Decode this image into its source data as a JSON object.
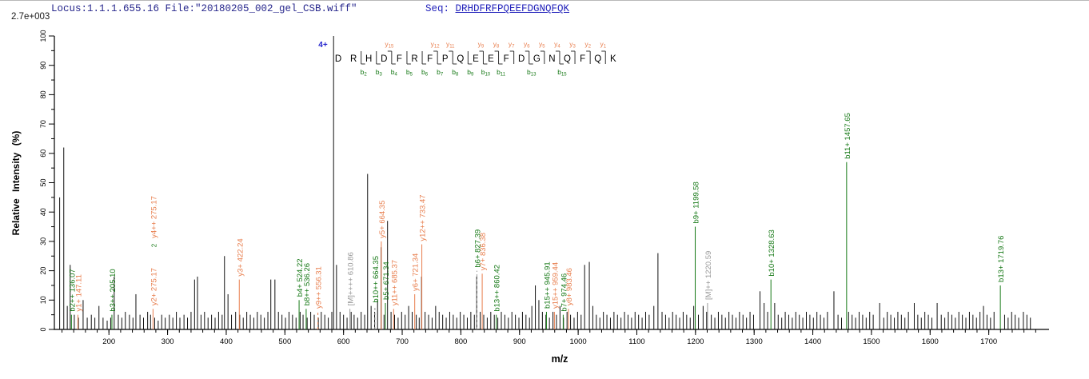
{
  "header": {
    "locus_text": "Locus:1.1.1.655.16 File:\"20180205_002_gel_CSB.wiff\"",
    "seq_label": "Seq: ",
    "seq_value": "DRHDFRFPQEEFDGNQFQK",
    "intensity_scale": "2.7e+003"
  },
  "colors": {
    "b_ion": "#157815",
    "y_ion": "#E87E4D",
    "precursor": "#999999",
    "peak": "#111111",
    "axis": "#000000",
    "charge": "#2222CC",
    "dashed_stem": "#9a9a9a"
  },
  "sequence_map": {
    "charge": "4+",
    "residues": [
      "D",
      "R",
      "H",
      "D",
      "F",
      "R",
      "F",
      "P",
      "Q",
      "E",
      "E",
      "F",
      "D",
      "G",
      "N",
      "Q",
      "F",
      "Q",
      "K"
    ],
    "y_ions": [
      {
        "site": 4,
        "label": "y15"
      },
      {
        "site": 7,
        "label": "y12"
      },
      {
        "site": 8,
        "label": "y11"
      },
      {
        "site": 10,
        "label": "y9"
      },
      {
        "site": 11,
        "label": "y8"
      },
      {
        "site": 12,
        "label": "y7"
      },
      {
        "site": 13,
        "label": "y6"
      },
      {
        "site": 14,
        "label": "y5"
      },
      {
        "site": 15,
        "label": "y4"
      },
      {
        "site": 16,
        "label": "y3"
      },
      {
        "site": 17,
        "label": "y2"
      },
      {
        "site": 18,
        "label": "y1"
      }
    ],
    "b_ions": [
      {
        "site": 2,
        "label": "b2"
      },
      {
        "site": 3,
        "label": "b3"
      },
      {
        "site": 4,
        "label": "b4"
      },
      {
        "site": 5,
        "label": "b5"
      },
      {
        "site": 6,
        "label": "b6"
      },
      {
        "site": 7,
        "label": "b7"
      },
      {
        "site": 8,
        "label": "b8"
      },
      {
        "site": 9,
        "label": "b9"
      },
      {
        "site": 10,
        "label": "b10"
      },
      {
        "site": 11,
        "label": "b11"
      },
      {
        "site": 13,
        "label": "b13"
      },
      {
        "site": 15,
        "label": "b15"
      }
    ]
  },
  "chart_data": {
    "type": "bar",
    "subtype": "ms2-centroid-spectrum",
    "title": "",
    "xlabel": "m/z",
    "ylabel": "Relative Intensity (%)",
    "xlim": [
      107,
      1800
    ],
    "ylim": [
      0,
      100
    ],
    "x_ticks": [
      200,
      300,
      400,
      500,
      600,
      700,
      800,
      900,
      1000,
      1100,
      1200,
      1300,
      1400,
      1500,
      1600,
      1700
    ],
    "x_minor_step": 20,
    "y_ticks": [
      0,
      10,
      20,
      30,
      40,
      50,
      60,
      70,
      80,
      90,
      100
    ],
    "y_minor_step": 5,
    "intensity_scale": "2.7e+003",
    "precursor_charge": "4+",
    "peptide": "DRHDFRFPQEEFDGNQFQK",
    "labeled_ions": [
      {
        "text": "b2++ 136.07",
        "mz": 136.07,
        "type": "b",
        "stem": 5
      },
      {
        "text": "y1+ 147.11",
        "mz": 147.11,
        "type": "y",
        "stem": 5
      },
      {
        "text": "b3++ 205.10",
        "mz": 205.1,
        "type": "b",
        "stem": 5
      },
      {
        "text": "y2+ 275.17",
        "mz": 275.17,
        "type": "y",
        "stem": 7
      },
      {
        "text": "y4++ 275.17",
        "mz": 275.17,
        "type": "y",
        "stem": 0,
        "textStart": 30,
        "mark": "2"
      },
      {
        "text": "y3+ 422.24",
        "mz": 422.24,
        "type": "y",
        "stem": 17
      },
      {
        "text": "b4+ 524.22",
        "mz": 524.22,
        "type": "b",
        "stem": 10
      },
      {
        "text": "b8++ 536.26",
        "mz": 536.26,
        "type": "b",
        "stem": 7
      },
      {
        "text": "y9++ 556.31",
        "mz": 556.31,
        "type": "y",
        "stem": 6,
        "dashed": true
      },
      {
        "text": "[M]++++ 610.86",
        "mz": 610.86,
        "type": "M",
        "stem": 7
      },
      {
        "text": "b10++ 664.35",
        "mz": 664.35,
        "type": "b",
        "stem": 8,
        "dashed": true,
        "dx": -8
      },
      {
        "text": "y5+ 664.35",
        "mz": 664.35,
        "type": "y",
        "stem": 30
      },
      {
        "text": "b5+ 671.34",
        "mz": 671.34,
        "type": "b",
        "stem": 9
      },
      {
        "text": "y11++ 685.37",
        "mz": 685.37,
        "type": "y",
        "stem": 7
      },
      {
        "text": "y6+ 721.34",
        "mz": 721.34,
        "type": "y",
        "stem": 12
      },
      {
        "text": "y12++ 733.47",
        "mz": 733.47,
        "type": "y",
        "stem": 29
      },
      {
        "text": "b6+ 827.39",
        "mz": 827.39,
        "type": "b",
        "stem": 20,
        "dashed": true
      },
      {
        "text": "y7+ 836.38",
        "mz": 836.38,
        "type": "y",
        "stem": 19
      },
      {
        "text": "b13++ 860.42",
        "mz": 860.42,
        "type": "b",
        "stem": 5
      },
      {
        "text": "b15++ 945.91",
        "mz": 945.91,
        "type": "b",
        "stem": 6
      },
      {
        "text": "y15++ 959.44",
        "mz": 959.44,
        "type": "y",
        "stem": 6
      },
      {
        "text": "b7+ 974.46",
        "mz": 974.46,
        "type": "b",
        "stem": 5
      },
      {
        "text": "y8+ 983.46",
        "mz": 983.46,
        "type": "y",
        "stem": 7
      },
      {
        "text": "b9+ 1199.58",
        "mz": 1199.58,
        "type": "b",
        "stem": 35
      },
      {
        "text": "[M]++ 1220.59",
        "mz": 1220.59,
        "type": "M",
        "stem": 9
      },
      {
        "text": "b10+ 1328.63",
        "mz": 1328.63,
        "type": "b",
        "stem": 17
      },
      {
        "text": "b11+ 1457.65",
        "mz": 1457.65,
        "type": "b",
        "stem": 57
      },
      {
        "text": "b13+ 1719.76",
        "mz": 1719.76,
        "type": "b",
        "stem": 15
      }
    ],
    "peaks": [
      [
        116,
        45
      ],
      [
        123,
        62
      ],
      [
        129,
        8
      ],
      [
        134,
        22
      ],
      [
        141,
        5
      ],
      [
        148,
        4
      ],
      [
        156,
        10
      ],
      [
        163,
        4
      ],
      [
        170,
        5
      ],
      [
        176,
        4
      ],
      [
        183,
        8
      ],
      [
        190,
        4
      ],
      [
        197,
        3
      ],
      [
        203,
        4
      ],
      [
        209,
        18
      ],
      [
        216,
        5
      ],
      [
        222,
        4
      ],
      [
        228,
        6
      ],
      [
        235,
        5
      ],
      [
        241,
        4
      ],
      [
        246,
        12
      ],
      [
        253,
        5
      ],
      [
        259,
        4
      ],
      [
        266,
        6
      ],
      [
        271,
        5
      ],
      [
        278,
        4
      ],
      [
        284,
        3
      ],
      [
        290,
        5
      ],
      [
        296,
        4
      ],
      [
        303,
        5
      ],
      [
        309,
        4
      ],
      [
        315,
        6
      ],
      [
        321,
        4
      ],
      [
        328,
        5
      ],
      [
        334,
        4
      ],
      [
        340,
        6
      ],
      [
        346,
        17
      ],
      [
        351,
        18
      ],
      [
        357,
        5
      ],
      [
        363,
        6
      ],
      [
        369,
        4
      ],
      [
        375,
        5
      ],
      [
        381,
        4
      ],
      [
        387,
        6
      ],
      [
        393,
        5
      ],
      [
        397,
        25
      ],
      [
        403,
        12
      ],
      [
        409,
        5
      ],
      [
        416,
        6
      ],
      [
        423,
        5
      ],
      [
        429,
        4
      ],
      [
        435,
        6
      ],
      [
        441,
        5
      ],
      [
        447,
        4
      ],
      [
        453,
        6
      ],
      [
        459,
        5
      ],
      [
        465,
        4
      ],
      [
        471,
        6
      ],
      [
        476,
        17
      ],
      [
        483,
        17
      ],
      [
        489,
        6
      ],
      [
        495,
        5
      ],
      [
        501,
        4
      ],
      [
        507,
        6
      ],
      [
        513,
        5
      ],
      [
        519,
        4
      ],
      [
        526,
        6
      ],
      [
        531,
        5
      ],
      [
        538,
        4
      ],
      [
        544,
        6
      ],
      [
        550,
        5
      ],
      [
        557,
        4
      ],
      [
        562,
        6
      ],
      [
        568,
        5
      ],
      [
        574,
        4
      ],
      [
        580,
        6
      ],
      [
        583,
        100
      ],
      [
        588,
        22
      ],
      [
        594,
        6
      ],
      [
        600,
        5
      ],
      [
        606,
        4
      ],
      [
        613,
        6
      ],
      [
        618,
        5
      ],
      [
        624,
        4
      ],
      [
        630,
        6
      ],
      [
        636,
        5
      ],
      [
        641,
        53
      ],
      [
        647,
        8
      ],
      [
        653,
        6
      ],
      [
        658,
        10
      ],
      [
        664,
        28
      ],
      [
        669,
        5
      ],
      [
        675,
        37
      ],
      [
        681,
        6
      ],
      [
        687,
        5
      ],
      [
        693,
        4
      ],
      [
        699,
        6
      ],
      [
        705,
        5
      ],
      [
        711,
        8
      ],
      [
        717,
        6
      ],
      [
        724,
        5
      ],
      [
        729,
        4
      ],
      [
        733,
        18
      ],
      [
        739,
        6
      ],
      [
        745,
        5
      ],
      [
        751,
        4
      ],
      [
        757,
        8
      ],
      [
        763,
        6
      ],
      [
        769,
        5
      ],
      [
        775,
        4
      ],
      [
        781,
        6
      ],
      [
        787,
        5
      ],
      [
        793,
        4
      ],
      [
        799,
        6
      ],
      [
        805,
        5
      ],
      [
        811,
        4
      ],
      [
        817,
        6
      ],
      [
        823,
        5
      ],
      [
        827,
        18
      ],
      [
        833,
        6
      ],
      [
        839,
        5
      ],
      [
        845,
        4
      ],
      [
        851,
        6
      ],
      [
        857,
        5
      ],
      [
        863,
        4
      ],
      [
        869,
        6
      ],
      [
        875,
        5
      ],
      [
        881,
        4
      ],
      [
        887,
        6
      ],
      [
        893,
        5
      ],
      [
        899,
        4
      ],
      [
        905,
        6
      ],
      [
        911,
        5
      ],
      [
        917,
        4
      ],
      [
        921,
        8
      ],
      [
        927,
        15
      ],
      [
        933,
        10
      ],
      [
        939,
        6
      ],
      [
        945,
        5
      ],
      [
        951,
        4
      ],
      [
        957,
        6
      ],
      [
        963,
        5
      ],
      [
        969,
        8
      ],
      [
        975,
        4
      ],
      [
        981,
        6
      ],
      [
        987,
        5
      ],
      [
        993,
        4
      ],
      [
        999,
        6
      ],
      [
        1005,
        5
      ],
      [
        1011,
        22
      ],
      [
        1019,
        23
      ],
      [
        1025,
        8
      ],
      [
        1031,
        5
      ],
      [
        1037,
        4
      ],
      [
        1043,
        6
      ],
      [
        1049,
        5
      ],
      [
        1055,
        4
      ],
      [
        1061,
        6
      ],
      [
        1067,
        5
      ],
      [
        1073,
        4
      ],
      [
        1079,
        6
      ],
      [
        1085,
        5
      ],
      [
        1091,
        4
      ],
      [
        1097,
        6
      ],
      [
        1103,
        5
      ],
      [
        1109,
        4
      ],
      [
        1115,
        6
      ],
      [
        1121,
        5
      ],
      [
        1129,
        8
      ],
      [
        1136,
        26
      ],
      [
        1143,
        6
      ],
      [
        1149,
        5
      ],
      [
        1155,
        4
      ],
      [
        1161,
        6
      ],
      [
        1167,
        5
      ],
      [
        1173,
        4
      ],
      [
        1179,
        6
      ],
      [
        1185,
        5
      ],
      [
        1191,
        4
      ],
      [
        1197,
        8
      ],
      [
        1205,
        5
      ],
      [
        1213,
        8
      ],
      [
        1219,
        6
      ],
      [
        1227,
        5
      ],
      [
        1233,
        4
      ],
      [
        1239,
        6
      ],
      [
        1245,
        5
      ],
      [
        1251,
        4
      ],
      [
        1257,
        6
      ],
      [
        1263,
        5
      ],
      [
        1269,
        4
      ],
      [
        1275,
        6
      ],
      [
        1281,
        5
      ],
      [
        1287,
        4
      ],
      [
        1293,
        6
      ],
      [
        1299,
        5
      ],
      [
        1310,
        13
      ],
      [
        1317,
        9
      ],
      [
        1323,
        6
      ],
      [
        1335,
        9
      ],
      [
        1341,
        5
      ],
      [
        1347,
        4
      ],
      [
        1353,
        6
      ],
      [
        1359,
        5
      ],
      [
        1365,
        4
      ],
      [
        1371,
        6
      ],
      [
        1377,
        5
      ],
      [
        1383,
        4
      ],
      [
        1389,
        6
      ],
      [
        1395,
        5
      ],
      [
        1401,
        4
      ],
      [
        1407,
        6
      ],
      [
        1413,
        5
      ],
      [
        1419,
        4
      ],
      [
        1425,
        6
      ],
      [
        1436,
        13
      ],
      [
        1443,
        5
      ],
      [
        1449,
        4
      ],
      [
        1461,
        6
      ],
      [
        1467,
        5
      ],
      [
        1473,
        4
      ],
      [
        1479,
        6
      ],
      [
        1485,
        5
      ],
      [
        1491,
        4
      ],
      [
        1497,
        6
      ],
      [
        1503,
        5
      ],
      [
        1514,
        9
      ],
      [
        1521,
        4
      ],
      [
        1527,
        6
      ],
      [
        1533,
        5
      ],
      [
        1539,
        4
      ],
      [
        1545,
        6
      ],
      [
        1551,
        5
      ],
      [
        1557,
        4
      ],
      [
        1563,
        6
      ],
      [
        1573,
        9
      ],
      [
        1579,
        5
      ],
      [
        1585,
        4
      ],
      [
        1591,
        6
      ],
      [
        1597,
        5
      ],
      [
        1603,
        4
      ],
      [
        1612,
        9
      ],
      [
        1619,
        5
      ],
      [
        1625,
        4
      ],
      [
        1631,
        6
      ],
      [
        1637,
        5
      ],
      [
        1643,
        4
      ],
      [
        1649,
        6
      ],
      [
        1655,
        5
      ],
      [
        1661,
        4
      ],
      [
        1667,
        6
      ],
      [
        1673,
        5
      ],
      [
        1679,
        4
      ],
      [
        1685,
        6
      ],
      [
        1691,
        8
      ],
      [
        1697,
        5
      ],
      [
        1703,
        4
      ],
      [
        1709,
        6
      ],
      [
        1727,
        5
      ],
      [
        1733,
        4
      ],
      [
        1739,
        6
      ],
      [
        1745,
        5
      ],
      [
        1751,
        4
      ],
      [
        1759,
        6
      ],
      [
        1765,
        5
      ],
      [
        1771,
        4
      ]
    ]
  }
}
